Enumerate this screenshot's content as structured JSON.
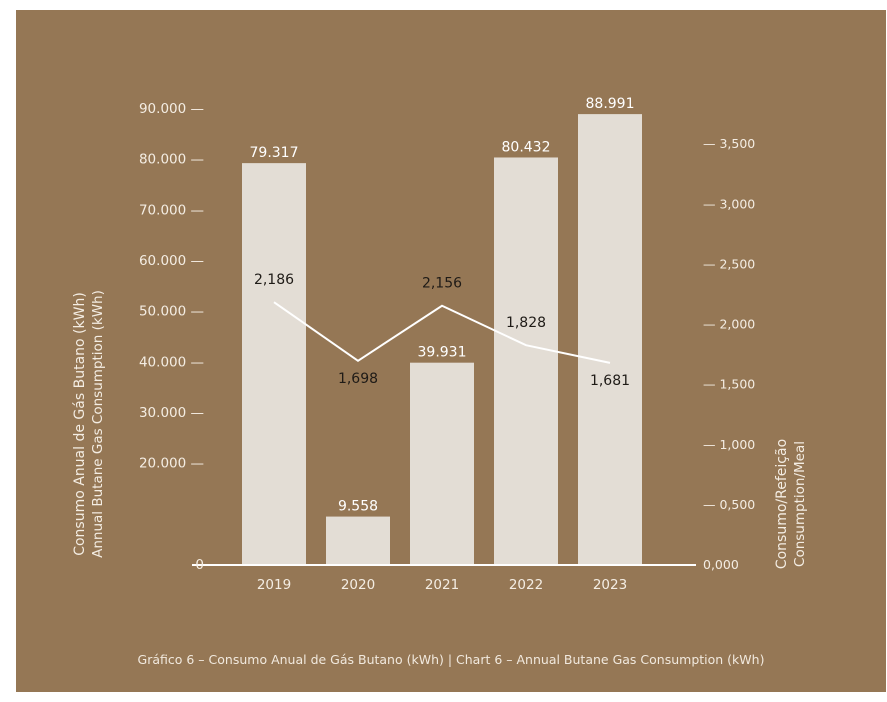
{
  "colors": {
    "background": "#957755",
    "bar": "#e3ddd5",
    "line": "#ffffff",
    "axis_text": "#f4ede3",
    "bar_label": "#ffffff",
    "line_label": "#1f1b17"
  },
  "caption": "Gráfico 6 – Consumo Anual de Gás Butano (kWh) | Chart 6 – Annual Butane Gas Consumption (kWh)",
  "chart_data": {
    "type": "bar",
    "categories": [
      "2019",
      "2020",
      "2021",
      "2022",
      "2023"
    ],
    "series": [
      {
        "name": "Consumo Anual de Gás Butano (kWh)",
        "type": "bar",
        "axis": "left",
        "values": [
          79317,
          9558,
          39931,
          80432,
          88991
        ],
        "labels": [
          "79.317",
          "9.558",
          "39.931",
          "80.432",
          "88.991"
        ]
      },
      {
        "name": "Consumo/Refeição",
        "type": "line",
        "axis": "right",
        "values": [
          2.186,
          1.698,
          2.156,
          1.828,
          1.681
        ],
        "labels": [
          "2,186",
          "1,698",
          "2,156",
          "1,828",
          "1,681"
        ]
      }
    ],
    "ylabel_left": [
      "Consumo Anual de Gás Butano (kWh)",
      "Annual Butane Gas Consumption (kWh)"
    ],
    "ylabel_right": [
      "Consumo/Refeição",
      "Consumption/Meal"
    ],
    "ylim_left": [
      0,
      90000
    ],
    "ylim_right": [
      0,
      4.0
    ],
    "left_ticks": [
      {
        "value": 0,
        "label": "0"
      },
      {
        "value": 20000,
        "label": "20.000 —"
      },
      {
        "value": 30000,
        "label": "30.000 —"
      },
      {
        "value": 40000,
        "label": "40.000 —"
      },
      {
        "value": 50000,
        "label": "50.000 —"
      },
      {
        "value": 60000,
        "label": "60.000 —"
      },
      {
        "value": 70000,
        "label": "70.000 —"
      },
      {
        "value": 80000,
        "label": "80.000 —"
      },
      {
        "value": 90000,
        "label": "90.000 —"
      }
    ],
    "right_ticks": [
      {
        "value": 0,
        "label": "0,000"
      },
      {
        "value": 0.5,
        "label": "— 0,500"
      },
      {
        "value": 1.0,
        "label": "— 1,000"
      },
      {
        "value": 1.5,
        "label": "— 1,500"
      },
      {
        "value": 2.0,
        "label": "— 2,000"
      },
      {
        "value": 2.5,
        "label": "— 2,500"
      },
      {
        "value": 3.0,
        "label": "— 3,000"
      },
      {
        "value": 3.5,
        "label": "— 3,500"
      }
    ],
    "grid": false,
    "legend": "none"
  }
}
